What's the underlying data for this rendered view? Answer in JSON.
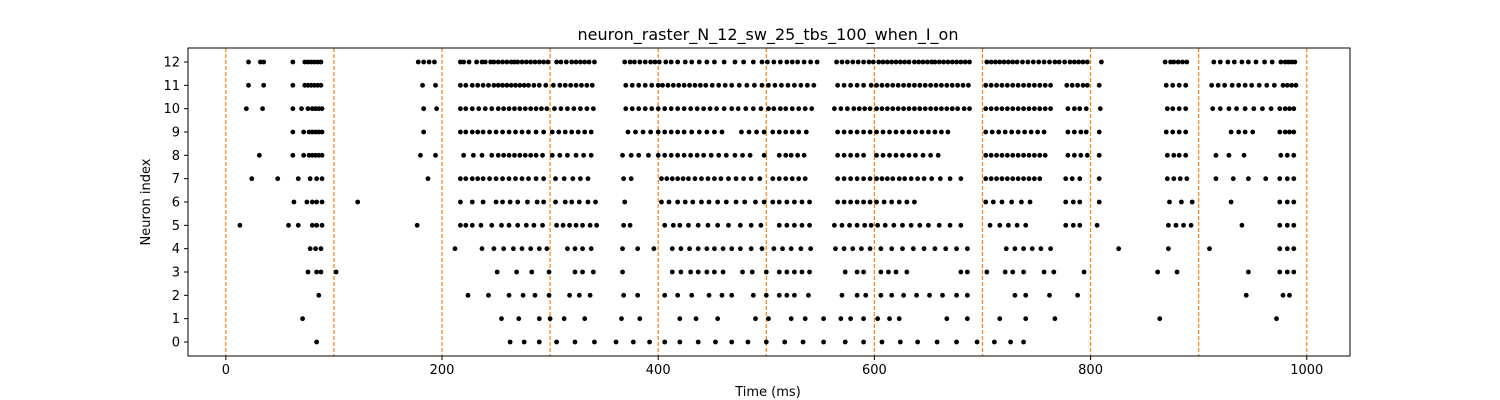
{
  "chart_data": {
    "type": "scatter",
    "title": "neuron_raster_N_12_sw_25_tbs_100_when_I_on",
    "xlabel": "Time (ms)",
    "ylabel": "Neuron index",
    "xlim": [
      -35,
      1040
    ],
    "ylim": [
      -0.6,
      12.6
    ],
    "xticks": [
      0,
      200,
      400,
      600,
      800,
      1000
    ],
    "yticks": [
      0,
      1,
      2,
      3,
      4,
      5,
      6,
      7,
      8,
      9,
      10,
      11,
      12
    ],
    "grid": false,
    "marker_color": "#000000",
    "vline_color": "#ff7f0e",
    "vlines": [
      0,
      100,
      200,
      300,
      400,
      500,
      600,
      700,
      800,
      900,
      1000
    ],
    "series": [
      {
        "neuron": 12,
        "x": [
          21,
          32,
          35,
          62,
          73,
          76,
          79,
          82,
          85,
          88,
          178,
          183,
          188,
          193,
          217,
          220,
          225,
          232,
          237,
          240,
          245,
          248,
          252,
          256,
          260,
          264,
          267,
          270,
          274,
          278,
          282,
          286,
          290,
          294,
          298,
          306,
          310,
          315,
          320,
          324,
          328,
          332,
          336,
          341,
          369,
          374,
          378,
          383,
          388,
          393,
          397,
          401,
          407,
          412,
          418,
          425,
          431,
          438,
          445,
          452,
          461,
          471,
          479,
          488,
          496,
          501,
          507,
          513,
          519,
          524,
          529,
          535,
          541,
          547,
          565,
          570,
          575,
          580,
          585,
          590,
          595,
          599,
          604,
          608,
          612,
          616,
          620,
          624,
          628,
          632,
          637,
          641,
          645,
          649,
          653,
          656,
          660,
          664,
          668,
          672,
          676,
          680,
          684,
          688,
          704,
          708,
          712,
          716,
          720,
          724,
          728,
          732,
          737,
          742,
          747,
          752,
          757,
          762,
          767,
          771,
          776,
          781,
          785,
          789,
          793,
          797,
          810,
          869,
          874,
          877,
          881,
          885,
          889,
          914,
          920,
          927,
          933,
          940,
          946,
          953,
          961,
          968,
          976,
          980,
          983,
          986,
          989
        ]
      },
      {
        "neuron": 11,
        "x": [
          21,
          35,
          62,
          73,
          76,
          79,
          82,
          85,
          88,
          182,
          194,
          217,
          222,
          228,
          233,
          238,
          243,
          248,
          252,
          256,
          260,
          264,
          268,
          272,
          276,
          280,
          285,
          290,
          296,
          303,
          309,
          314,
          319,
          324,
          329,
          334,
          339,
          370,
          376,
          382,
          388,
          394,
          400,
          404,
          409,
          414,
          419,
          424,
          429,
          434,
          439,
          444,
          450,
          456,
          462,
          468,
          475,
          482,
          489,
          496,
          502,
          508,
          514,
          520,
          526,
          532,
          538,
          544,
          566,
          572,
          578,
          584,
          590,
          597,
          602,
          607,
          612,
          617,
          622,
          627,
          632,
          637,
          642,
          647,
          652,
          657,
          662,
          667,
          672,
          677,
          682,
          687,
          703,
          708,
          713,
          718,
          723,
          728,
          733,
          738,
          743,
          748,
          753,
          758,
          763,
          778,
          783,
          788,
          793,
          797,
          808,
          870,
          876,
          882,
          888,
          912,
          918,
          924,
          931,
          937,
          943,
          949,
          956,
          963,
          970,
          978,
          982,
          986,
          990
        ]
      },
      {
        "neuron": 10,
        "x": [
          19,
          34,
          62,
          70,
          76,
          80,
          83,
          86,
          89,
          183,
          195,
          217,
          222,
          228,
          234,
          240,
          246,
          252,
          257,
          262,
          267,
          272,
          277,
          282,
          287,
          292,
          297,
          304,
          310,
          316,
          322,
          328,
          334,
          340,
          370,
          376,
          382,
          388,
          394,
          400,
          406,
          412,
          418,
          424,
          430,
          436,
          442,
          448,
          454,
          461,
          468,
          474,
          481,
          488,
          495,
          502,
          507,
          513,
          518,
          524,
          530,
          536,
          542,
          563,
          569,
          575,
          581,
          586,
          591,
          596,
          602,
          607,
          612,
          617,
          622,
          627,
          632,
          637,
          642,
          647,
          652,
          657,
          662,
          667,
          672,
          677,
          683,
          688,
          703,
          708,
          713,
          718,
          723,
          728,
          733,
          738,
          743,
          748,
          753,
          758,
          763,
          779,
          785,
          790,
          796,
          809,
          871,
          876,
          882,
          888,
          913,
          920,
          928,
          935,
          943,
          951,
          959,
          967,
          975,
          980,
          984,
          988
        ]
      },
      {
        "neuron": 9,
        "x": [
          62,
          72,
          77,
          80,
          83,
          86,
          89,
          183,
          217,
          222,
          228,
          233,
          238,
          244,
          250,
          256,
          262,
          268,
          274,
          280,
          287,
          294,
          302,
          308,
          314,
          320,
          326,
          332,
          338,
          372,
          379,
          386,
          393,
          400,
          406,
          412,
          418,
          424,
          431,
          438,
          445,
          452,
          459,
          477,
          484,
          491,
          498,
          506,
          512,
          518,
          524,
          530,
          537,
          566,
          572,
          578,
          584,
          590,
          596,
          602,
          608,
          614,
          620,
          626,
          632,
          638,
          644,
          650,
          656,
          662,
          668,
          703,
          709,
          715,
          721,
          727,
          733,
          739,
          745,
          751,
          757,
          779,
          785,
          791,
          796,
          808,
          870,
          876,
          882,
          888,
          930,
          937,
          943,
          950,
          975,
          980,
          984,
          988
        ]
      },
      {
        "neuron": 8,
        "x": [
          31,
          62,
          72,
          77,
          80,
          83,
          86,
          89,
          180,
          194,
          220,
          229,
          237,
          246,
          252,
          257,
          262,
          267,
          272,
          277,
          282,
          287,
          293,
          302,
          309,
          316,
          324,
          331,
          338,
          367,
          375,
          382,
          391,
          400,
          406,
          412,
          418,
          424,
          430,
          436,
          442,
          449,
          456,
          463,
          471,
          478,
          485,
          498,
          512,
          518,
          523,
          529,
          535,
          566,
          572,
          578,
          584,
          590,
          602,
          608,
          614,
          620,
          626,
          632,
          638,
          645,
          652,
          659,
          703,
          708,
          713,
          718,
          723,
          728,
          733,
          738,
          743,
          748,
          753,
          758,
          779,
          785,
          791,
          797,
          808,
          871,
          877,
          882,
          888,
          916,
          928,
          942,
          976,
          982,
          988
        ]
      },
      {
        "neuron": 7,
        "x": [
          24,
          48,
          67,
          78,
          84,
          89,
          187,
          217,
          222,
          228,
          233,
          238,
          244,
          250,
          256,
          262,
          268,
          274,
          280,
          287,
          294,
          305,
          313,
          321,
          328,
          335,
          368,
          375,
          403,
          408,
          413,
          418,
          423,
          428,
          434,
          440,
          446,
          452,
          458,
          465,
          472,
          479,
          486,
          494,
          506,
          512,
          518,
          524,
          530,
          536,
          566,
          572,
          578,
          584,
          590,
          596,
          602,
          607,
          612,
          617,
          623,
          628,
          634,
          640,
          646,
          653,
          661,
          670,
          680,
          703,
          708,
          713,
          718,
          723,
          728,
          733,
          738,
          743,
          748,
          753,
          777,
          783,
          790,
          808,
          871,
          877,
          883,
          889,
          916,
          932,
          946,
          962,
          975,
          982,
          988
        ]
      },
      {
        "neuron": 6,
        "x": [
          122,
          63,
          75,
          80,
          84,
          89,
          217,
          228,
          238,
          250,
          256,
          263,
          270,
          279,
          288,
          294,
          305,
          314,
          320,
          327,
          335,
          342,
          369,
          403,
          410,
          418,
          425,
          432,
          440,
          447,
          455,
          463,
          472,
          480,
          490,
          498,
          506,
          512,
          519,
          526,
          533,
          540,
          566,
          572,
          578,
          584,
          590,
          596,
          602,
          609,
          616,
          623,
          630,
          637,
          703,
          710,
          718,
          727,
          736,
          744,
          777,
          784,
          790,
          808,
          873,
          884,
          894,
          930,
          975,
          982,
          988
        ]
      },
      {
        "neuron": 5,
        "x": [
          13,
          58,
          67,
          80,
          84,
          89,
          177,
          217,
          222,
          228,
          236,
          246,
          255,
          262,
          270,
          278,
          285,
          293,
          306,
          312,
          318,
          324,
          330,
          337,
          343,
          368,
          374,
          406,
          414,
          420,
          428,
          437,
          446,
          455,
          465,
          476,
          486,
          495,
          512,
          519,
          526,
          533,
          540,
          563,
          570,
          577,
          584,
          591,
          597,
          603,
          610,
          618,
          626,
          634,
          642,
          650,
          660,
          670,
          680,
          707,
          716,
          724,
          732,
          740,
          777,
          784,
          790,
          806,
          872,
          879,
          886,
          893,
          940,
          975,
          982,
          988
        ]
      },
      {
        "neuron": 4,
        "x": [
          78,
          83,
          88,
          212,
          237,
          248,
          257,
          266,
          274,
          282,
          290,
          297,
          316,
          323,
          330,
          338,
          367,
          381,
          396,
          413,
          421,
          429,
          437,
          445,
          452,
          460,
          468,
          476,
          486,
          496,
          507,
          515,
          523,
          532,
          541,
          564,
          572,
          580,
          588,
          596,
          606,
          616,
          626,
          636,
          646,
          656,
          666,
          676,
          686,
          722,
          730,
          738,
          746,
          754,
          763,
          826,
          872,
          910,
          975,
          982,
          988
        ]
      },
      {
        "neuron": 3,
        "x": [
          76,
          84,
          88,
          102,
          251,
          269,
          283,
          299,
          323,
          330,
          340,
          367,
          413,
          421,
          430,
          437,
          445,
          452,
          460,
          478,
          487,
          500,
          512,
          519,
          526,
          533,
          540,
          573,
          584,
          590,
          606,
          613,
          620,
          630,
          680,
          686,
          704,
          721,
          728,
          738,
          757,
          766,
          794,
          862,
          880,
          946,
          975,
          982,
          988
        ]
      },
      {
        "neuron": 2,
        "x": [
          86,
          224,
          243,
          262,
          275,
          286,
          299,
          318,
          327,
          337,
          368,
          381,
          406,
          418,
          431,
          447,
          459,
          468,
          488,
          500,
          512,
          519,
          526,
          539,
          570,
          584,
          592,
          606,
          616,
          627,
          639,
          651,
          663,
          676,
          686,
          730,
          740,
          762,
          788,
          944,
          978,
          984
        ]
      },
      {
        "neuron": 1,
        "x": [
          71,
          255,
          271,
          290,
          300,
          313,
          332,
          366,
          383,
          420,
          435,
          455,
          490,
          502,
          523,
          536,
          553,
          569,
          578,
          590,
          603,
          614,
          623,
          667,
          686,
          716,
          740,
          767,
          864,
          972
        ]
      },
      {
        "neuron": 0,
        "x": [
          84,
          263,
          276,
          290,
          306,
          323,
          341,
          361,
          377,
          392,
          406,
          420,
          437,
          453,
          468,
          483,
          500,
          517,
          534,
          553,
          573,
          590,
          607,
          624,
          640,
          658,
          676,
          695,
          711,
          726,
          738
        ]
      }
    ]
  }
}
